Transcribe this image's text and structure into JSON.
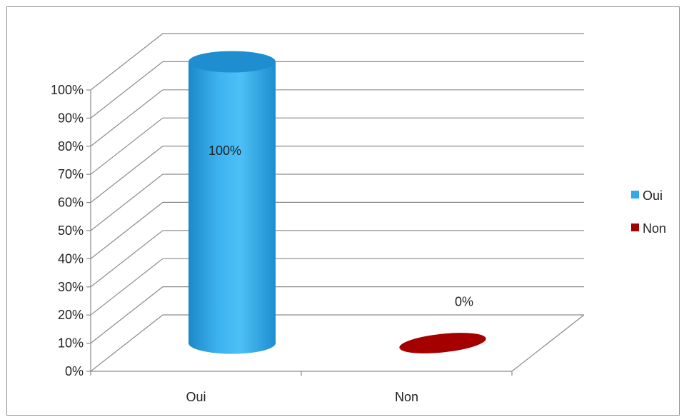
{
  "chart_data": {
    "type": "bar",
    "style": "3d-cylinder",
    "categories": [
      "Oui",
      "Non"
    ],
    "values": [
      100,
      0
    ],
    "data_labels": [
      "100%",
      "0%"
    ],
    "y_tick_labels": [
      "0%",
      "10%",
      "20%",
      "30%",
      "40%",
      "50%",
      "60%",
      "70%",
      "80%",
      "90%",
      "100%"
    ],
    "ylim": [
      0,
      100
    ],
    "title": "",
    "xlabel": "",
    "ylabel": "",
    "grid": true,
    "legend_position": "right",
    "legend": [
      {
        "label": "Oui",
        "color": "#33a9e8"
      },
      {
        "label": "Non",
        "color": "#a40000"
      }
    ]
  }
}
